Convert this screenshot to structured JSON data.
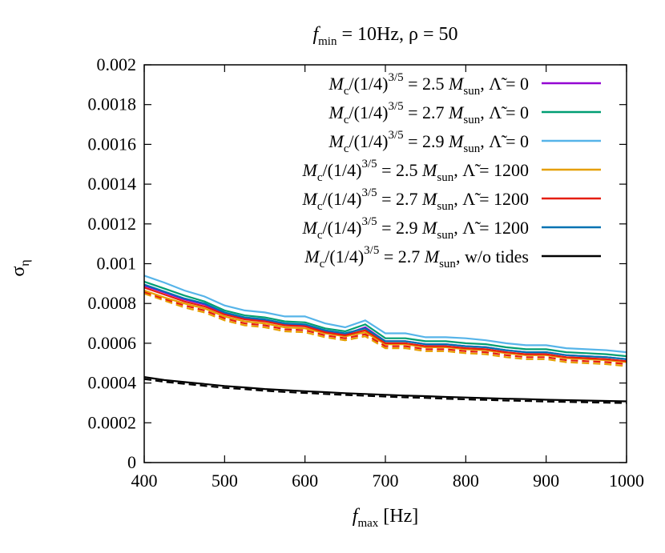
{
  "chart_data": {
    "type": "line",
    "title": "f_min = 10Hz, ρ = 50",
    "xlabel": "f_max [Hz]",
    "ylabel": "σ_η",
    "xlim": [
      400,
      1000
    ],
    "ylim": [
      0,
      0.002
    ],
    "x_ticks": [
      400,
      500,
      600,
      700,
      800,
      900,
      1000
    ],
    "x_tick_labels": [
      "400",
      "500",
      "600",
      "700",
      "800",
      "900",
      "1000"
    ],
    "y_ticks": [
      0,
      0.0002,
      0.0004,
      0.0006,
      0.0008,
      0.001,
      0.0012,
      0.0014,
      0.0016,
      0.0018,
      0.002
    ],
    "y_tick_labels": [
      "0",
      "0.0002",
      "0.0004",
      "0.0006",
      "0.0008",
      "0.001",
      "0.0012",
      "0.0014",
      "0.0016",
      "0.0018",
      "0.002"
    ],
    "grid": false,
    "legend_position": "top-right",
    "x": [
      400,
      425,
      450,
      475,
      500,
      525,
      550,
      575,
      600,
      625,
      650,
      675,
      700,
      725,
      750,
      775,
      800,
      825,
      850,
      875,
      900,
      925,
      950,
      975,
      1000
    ],
    "series": [
      {
        "name": "M_c/(1/4)^{3/5} = 2.5 M_sun, Λ̃ = 0",
        "color": "#9400d3",
        "style": "solid",
        "values": [
          0.00089,
          0.000855,
          0.00082,
          0.000795,
          0.00075,
          0.000725,
          0.000715,
          0.000695,
          0.00069,
          0.00066,
          0.000645,
          0.00068,
          0.00061,
          0.00061,
          0.000595,
          0.000595,
          0.000585,
          0.00058,
          0.000565,
          0.000555,
          0.000555,
          0.00054,
          0.000535,
          0.00053,
          0.00052
        ]
      },
      {
        "name": "M_c/(1/4)^{3/5} = 2.7 M_sun, Λ̃ = 0",
        "color": "#009e73",
        "style": "solid",
        "values": [
          0.00091,
          0.000875,
          0.00084,
          0.00081,
          0.000765,
          0.00074,
          0.00073,
          0.00071,
          0.000705,
          0.000675,
          0.00066,
          0.000695,
          0.000625,
          0.000625,
          0.00061,
          0.00061,
          0.0006,
          0.000595,
          0.00058,
          0.00057,
          0.00057,
          0.000555,
          0.00055,
          0.000545,
          0.000535
        ]
      },
      {
        "name": "M_c/(1/4)^{3/5} = 2.9 M_sun, Λ̃ = 0",
        "color": "#56b4e9",
        "style": "solid",
        "values": [
          0.00094,
          0.000905,
          0.000865,
          0.000835,
          0.00079,
          0.000765,
          0.000755,
          0.000735,
          0.000735,
          0.0007,
          0.00068,
          0.000715,
          0.00065,
          0.00065,
          0.00063,
          0.00063,
          0.000625,
          0.000615,
          0.0006,
          0.00059,
          0.00059,
          0.000575,
          0.00057,
          0.000565,
          0.000555
        ]
      },
      {
        "name": "M_c/(1/4)^{3/5} = 2.5 M_sun, Λ̃ = 1200",
        "color": "#e69f00",
        "style": "solid",
        "values": [
          0.000865,
          0.00083,
          0.0008,
          0.000775,
          0.000735,
          0.00071,
          0.0007,
          0.00068,
          0.000675,
          0.00065,
          0.000635,
          0.000655,
          0.000595,
          0.000595,
          0.00058,
          0.00058,
          0.00057,
          0.000565,
          0.00055,
          0.00054,
          0.00054,
          0.000525,
          0.00052,
          0.000515,
          0.000505
        ]
      },
      {
        "name": "M_c/(1/4)^{3/5} = 2.7 M_sun, Λ̃ = 1200",
        "color": "#e51e10",
        "style": "solid",
        "values": [
          0.00088,
          0.000845,
          0.00081,
          0.000785,
          0.000745,
          0.00072,
          0.00071,
          0.00069,
          0.000685,
          0.000655,
          0.00064,
          0.000665,
          0.0006,
          0.0006,
          0.000585,
          0.000585,
          0.000575,
          0.00057,
          0.000555,
          0.000545,
          0.000545,
          0.00053,
          0.000525,
          0.00052,
          0.00051
        ]
      },
      {
        "name": "M_c/(1/4)^{3/5} = 2.9 M_sun, Λ̃ = 1200",
        "color": "#0072b2",
        "style": "solid",
        "values": [
          0.000895,
          0.00086,
          0.000825,
          0.0008,
          0.000755,
          0.00073,
          0.00072,
          0.0007,
          0.000695,
          0.000665,
          0.00065,
          0.000675,
          0.00061,
          0.00061,
          0.000595,
          0.000595,
          0.000585,
          0.00058,
          0.000565,
          0.000555,
          0.000555,
          0.00054,
          0.000535,
          0.00053,
          0.00052
        ]
      },
      {
        "name": "M_c/(1/4)^{3/5} = 2.7 M_sun, w/o tides",
        "color": "#000000",
        "style": "solid",
        "values": [
          0.00043,
          0.000415,
          0.000405,
          0.000395,
          0.000385,
          0.000378,
          0.00037,
          0.000364,
          0.000359,
          0.000354,
          0.000349,
          0.000345,
          0.000341,
          0.000337,
          0.000334,
          0.00033,
          0.000327,
          0.000324,
          0.000321,
          0.000319,
          0.000316,
          0.000314,
          0.000312,
          0.00031,
          0.000308
        ]
      }
    ],
    "dashed_series": [
      {
        "color": "#e69f00",
        "values": [
          0.00085,
          0.000815,
          0.00078,
          0.000755,
          0.000715,
          0.00069,
          0.00068,
          0.00066,
          0.000655,
          0.00063,
          0.000615,
          0.000635,
          0.000575,
          0.000575,
          0.00056,
          0.00056,
          0.00055,
          0.000545,
          0.00053,
          0.00052,
          0.00052,
          0.000505,
          0.0005,
          0.000495,
          0.000485
        ]
      },
      {
        "color": "#e51e10",
        "values": [
          0.000858,
          0.000823,
          0.00079,
          0.000765,
          0.000725,
          0.0007,
          0.00069,
          0.00067,
          0.000665,
          0.00064,
          0.000625,
          0.000645,
          0.000585,
          0.000585,
          0.00057,
          0.00057,
          0.00056,
          0.000555,
          0.00054,
          0.00053,
          0.00053,
          0.000515,
          0.00051,
          0.000505,
          0.000495
        ]
      },
      {
        "color": "#000000",
        "values": [
          0.00042,
          0.000406,
          0.000396,
          0.000386,
          0.000376,
          0.000369,
          0.000361,
          0.000355,
          0.00035,
          0.000345,
          0.00034,
          0.000336,
          0.000332,
          0.000328,
          0.000325,
          0.000321,
          0.000318,
          0.000315,
          0.000312,
          0.00031,
          0.000307,
          0.000305,
          0.000303,
          0.000301,
          0.000299
        ]
      }
    ]
  }
}
